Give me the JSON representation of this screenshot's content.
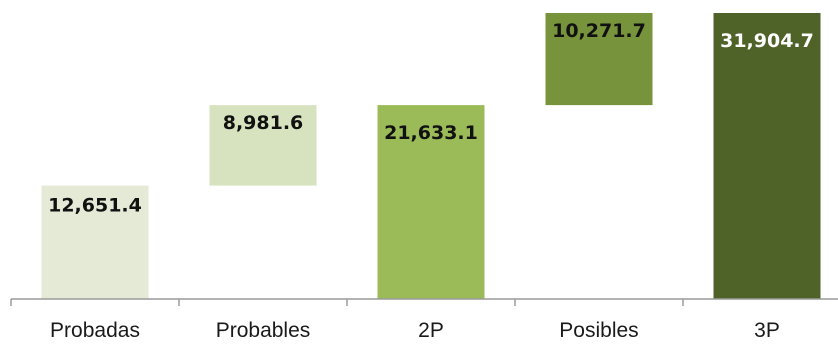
{
  "chart_data": {
    "type": "bar",
    "subtype": "waterfall",
    "title": "",
    "xlabel": "",
    "ylabel": "",
    "ylim": [
      0,
      31904.7
    ],
    "grid": false,
    "legend": "none",
    "categories": [
      "Probadas",
      "Probables",
      "2P",
      "Posibles",
      "3P"
    ],
    "bars": [
      {
        "category": "Probadas",
        "label": "12,651.4",
        "base": 0,
        "value": 12651.4,
        "color": "#e4ead6",
        "label_color": "#111111"
      },
      {
        "category": "Probables",
        "label": "8,981.6",
        "base": 12651.4,
        "value": 8981.6,
        "color": "#d7e3bf",
        "label_color": "#111111"
      },
      {
        "category": "2P",
        "label": "21,633.1",
        "base": 0,
        "value": 21633.1,
        "color": "#9bbb59",
        "label_color": "#111111"
      },
      {
        "category": "Posibles",
        "label": "10,271.7",
        "base": 21633.1,
        "value": 10271.7,
        "color": "#77933c",
        "label_color": "#111111"
      },
      {
        "category": "3P",
        "label": "31,904.7",
        "base": 0,
        "value": 31904.7,
        "color": "#4f6228",
        "label_color": "#ffffff"
      }
    ]
  }
}
